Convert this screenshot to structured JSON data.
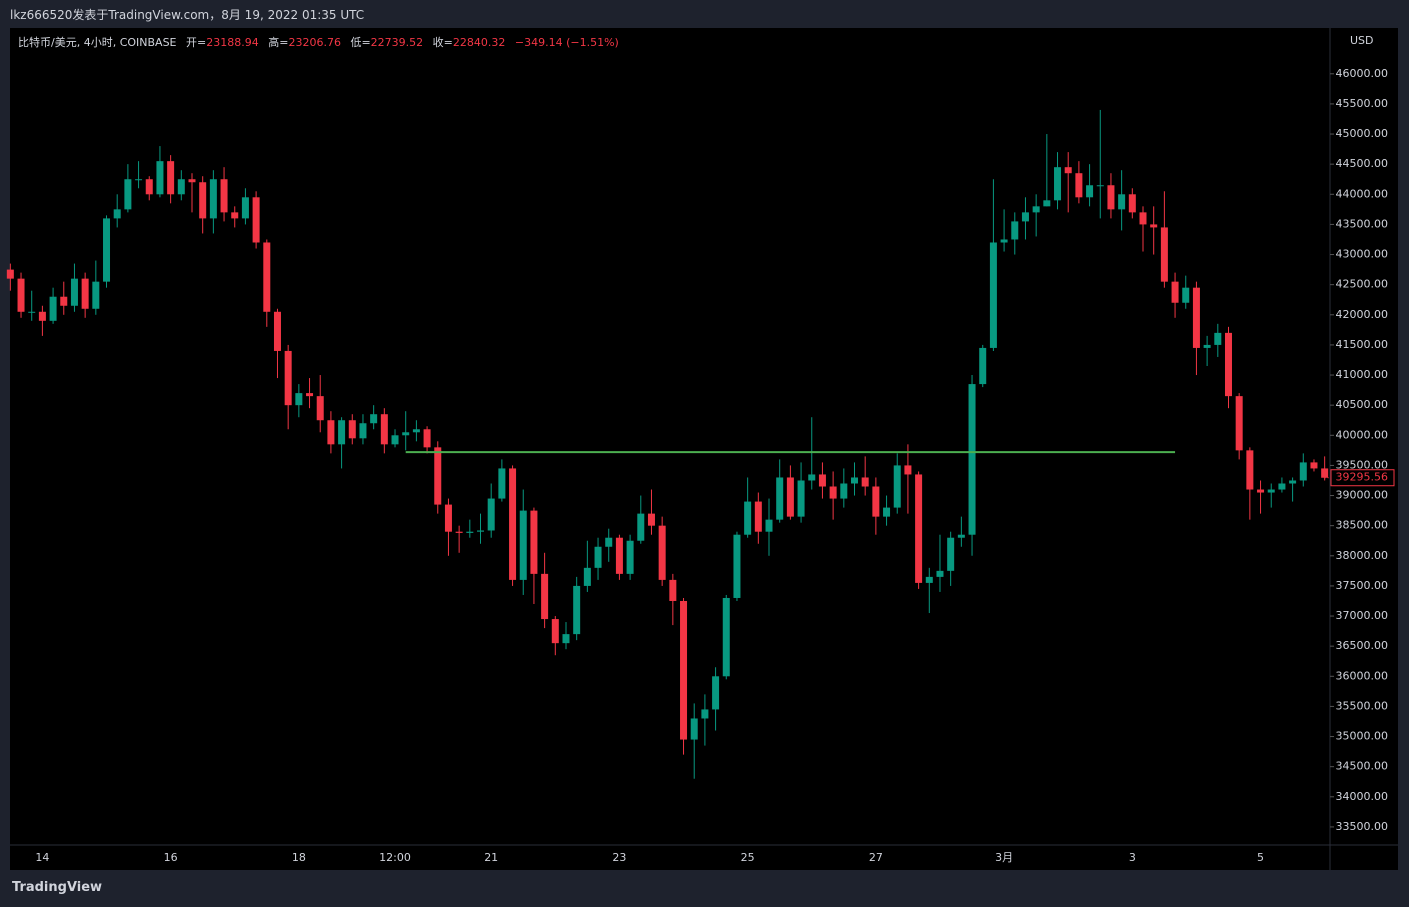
{
  "header": {
    "text": "lkz666520发表于TradingView.com，8月 19, 2022 01:35 UTC"
  },
  "chart_data": {
    "type": "candlestick",
    "legend": {
      "symbol": "比特币/美元, 4小时, COINBASE",
      "open_label": "开=",
      "open": "23188.94",
      "high_label": "高=",
      "high": "23206.76",
      "low_label": "低=",
      "low": "22739.52",
      "close_label": "收=",
      "close": "22840.32",
      "change": "−349.14 (−1.51%)"
    },
    "currency": "USD",
    "categories": [
      null,
      null,
      null,
      "14",
      null,
      null,
      null,
      null,
      null,
      null,
      null,
      null,
      null,
      null,
      null,
      "16",
      null,
      null,
      null,
      null,
      null,
      null,
      null,
      null,
      null,
      null,
      null,
      "18",
      null,
      null,
      null,
      null,
      null,
      null,
      null,
      null,
      "12:00",
      null,
      null,
      null,
      null,
      null,
      null,
      null,
      null,
      "21",
      null,
      null,
      null,
      null,
      null,
      null,
      null,
      null,
      null,
      null,
      null,
      "23",
      null,
      null,
      null,
      null,
      null,
      null,
      null,
      null,
      null,
      null,
      null,
      "25",
      null,
      null,
      null,
      null,
      null,
      null,
      null,
      null,
      null,
      null,
      null,
      "27",
      null,
      null,
      null,
      null,
      null,
      null,
      null,
      null,
      null,
      null,
      null,
      "3月",
      null,
      null,
      null,
      null,
      null,
      null,
      null,
      null,
      null,
      null,
      null,
      "3",
      null,
      null,
      null,
      null,
      null,
      null,
      null,
      null,
      null,
      null,
      null,
      "5",
      null,
      null,
      null,
      null,
      null,
      null
    ],
    "open": [
      42750,
      42600,
      42050,
      42050,
      41900,
      42300,
      42150,
      42600,
      42100,
      42550,
      43600,
      43750,
      44250,
      44250,
      44000,
      44550,
      44000,
      44250,
      44200,
      43600,
      44250,
      43700,
      43600,
      43950,
      43200,
      42050,
      41400,
      40500,
      40700,
      40650,
      40250,
      39850,
      40250,
      39950,
      40200,
      40350,
      39850,
      40000,
      40050,
      40100,
      39800,
      38850,
      38400,
      38380,
      38400,
      38420,
      38950,
      39450,
      37600,
      38750,
      37700,
      36950,
      36550,
      36700,
      37500,
      37800,
      38150,
      38300,
      37700,
      38250,
      38700,
      38500,
      37600,
      37250,
      34950,
      35300,
      35450,
      36000,
      37300,
      38350,
      38900,
      38400,
      38600,
      39300,
      38650,
      39250,
      39350,
      39150,
      38950,
      39200,
      39300,
      39150,
      38650,
      38800,
      39500,
      39350,
      37550,
      37650,
      37750,
      38300,
      38350,
      40850,
      41450,
      43200,
      43250,
      43550,
      43700,
      43800,
      43900,
      44450,
      44350,
      43950,
      44150,
      44150,
      43750,
      44000,
      43700,
      43500,
      43450,
      42550,
      42200,
      42450,
      41450,
      41500,
      41700,
      40650,
      39750,
      39100,
      39050,
      39100,
      39200,
      39250,
      39550,
      39450
    ],
    "high": [
      42850,
      42700,
      42400,
      42150,
      42450,
      42550,
      42850,
      42700,
      42900,
      43650,
      44000,
      44500,
      44550,
      44300,
      44800,
      44650,
      44400,
      44350,
      44300,
      44400,
      44450,
      43800,
      44100,
      44050,
      43250,
      42100,
      41500,
      40850,
      40950,
      41000,
      40400,
      40300,
      40350,
      40350,
      40500,
      40450,
      40100,
      40400,
      40250,
      40150,
      39900,
      38950,
      38500,
      38600,
      38700,
      39200,
      39600,
      39500,
      39100,
      38800,
      38050,
      37000,
      36900,
      37650,
      38250,
      38300,
      38450,
      38350,
      38350,
      39000,
      39100,
      38650,
      37700,
      37300,
      35550,
      35700,
      36150,
      37350,
      38400,
      39300,
      39050,
      38950,
      39600,
      39500,
      39550,
      40300,
      39550,
      39400,
      39450,
      39550,
      39650,
      39300,
      39000,
      39700,
      39850,
      39400,
      37800,
      38350,
      38400,
      38650,
      41000,
      41500,
      44250,
      43750,
      43700,
      43950,
      44000,
      45000,
      44700,
      44700,
      44550,
      44500,
      45400,
      44350,
      44400,
      44100,
      43800,
      43800,
      44050,
      42700,
      42650,
      42550,
      41650,
      41850,
      41800,
      40700,
      39800,
      39250,
      39200,
      39300,
      39300,
      39700,
      39600,
      39650
    ],
    "low": [
      42400,
      41950,
      41900,
      41650,
      41850,
      42000,
      42050,
      41950,
      42000,
      42450,
      43450,
      43700,
      44100,
      43900,
      43950,
      43850,
      43900,
      43700,
      43350,
      43350,
      43550,
      43450,
      43500,
      43100,
      41800,
      40950,
      40100,
      40300,
      40450,
      40050,
      39700,
      39450,
      39850,
      39850,
      40100,
      39700,
      39800,
      39750,
      39900,
      39700,
      38700,
      38000,
      38050,
      38300,
      38200,
      38300,
      38900,
      37500,
      37350,
      37200,
      36800,
      36350,
      36450,
      36600,
      37400,
      37600,
      37900,
      37600,
      37600,
      38200,
      38350,
      37500,
      36850,
      34700,
      34300,
      34850,
      35100,
      35950,
      37250,
      38300,
      38200,
      38000,
      38550,
      38600,
      38550,
      39100,
      38950,
      38600,
      38800,
      39000,
      39000,
      38350,
      38500,
      38700,
      38700,
      37450,
      37050,
      37400,
      37500,
      38150,
      38000,
      40800,
      41400,
      43050,
      43000,
      43250,
      43300,
      43800,
      43750,
      43700,
      43850,
      43800,
      43600,
      43600,
      43400,
      43600,
      43050,
      43000,
      42450,
      41950,
      42100,
      41000,
      41150,
      41300,
      40450,
      39600,
      38600,
      38700,
      38800,
      39050,
      38900,
      39150,
      39400,
      39250
    ],
    "close": [
      42600,
      42050,
      42050,
      41900,
      42300,
      42150,
      42600,
      42100,
      42550,
      43600,
      43750,
      44250,
      44250,
      44000,
      44550,
      44000,
      44250,
      44200,
      43600,
      44250,
      43700,
      43600,
      43950,
      43200,
      42050,
      41400,
      40500,
      40700,
      40650,
      40250,
      39850,
      40250,
      39950,
      40200,
      40350,
      39850,
      40000,
      40050,
      40100,
      39800,
      38850,
      38400,
      38380,
      38400,
      38420,
      38950,
      39450,
      37600,
      38750,
      37700,
      36950,
      36550,
      36700,
      37500,
      37800,
      38150,
      38300,
      37700,
      38250,
      38700,
      38500,
      37600,
      37250,
      34950,
      35300,
      35450,
      36000,
      37300,
      38350,
      38900,
      38400,
      38600,
      39300,
      38650,
      39250,
      39350,
      39150,
      38950,
      39200,
      39300,
      39150,
      38650,
      38800,
      39500,
      39350,
      37550,
      37650,
      37750,
      38300,
      38350,
      40850,
      41450,
      43200,
      43250,
      43550,
      43700,
      43800,
      43900,
      44450,
      44350,
      43950,
      44150,
      44150,
      43750,
      44000,
      43700,
      43500,
      43450,
      42550,
      42200,
      42450,
      41450,
      41500,
      41700,
      40650,
      39750,
      39100,
      39050,
      39100,
      39200,
      39250,
      39550,
      39450,
      39295.56
    ],
    "up_color": "#089981",
    "down_color": "#f23645",
    "ylim": [
      33200,
      46760
    ],
    "yticks": [
      {
        "value": 33500,
        "label": "33500.00"
      },
      {
        "value": 34000,
        "label": "34000.00"
      },
      {
        "value": 34500,
        "label": "34500.00"
      },
      {
        "value": 35000,
        "label": "35000.00"
      },
      {
        "value": 35500,
        "label": "35500.00"
      },
      {
        "value": 36000,
        "label": "36000.00"
      },
      {
        "value": 36500,
        "label": "36500.00"
      },
      {
        "value": 37000,
        "label": "37000.00"
      },
      {
        "value": 37500,
        "label": "37500.00"
      },
      {
        "value": 38000,
        "label": "38000.00"
      },
      {
        "value": 38500,
        "label": "38500.00"
      },
      {
        "value": 39000,
        "label": "39000.00"
      },
      {
        "value": 39500,
        "label": "39500.00"
      },
      {
        "value": 40000,
        "label": "40000.00"
      },
      {
        "value": 40500,
        "label": "40500.00"
      },
      {
        "value": 41000,
        "label": "41000.00"
      },
      {
        "value": 41500,
        "label": "41500.00"
      },
      {
        "value": 42000,
        "label": "42000.00"
      },
      {
        "value": 42500,
        "label": "42500.00"
      },
      {
        "value": 43000,
        "label": "43000.00"
      },
      {
        "value": 43500,
        "label": "43500.00"
      },
      {
        "value": 44000,
        "label": "44000.00"
      },
      {
        "value": 44500,
        "label": "44500.00"
      },
      {
        "value": 45000,
        "label": "45000.00"
      },
      {
        "value": 45500,
        "label": "45500.00"
      },
      {
        "value": 46000,
        "label": "46000.00"
      }
    ],
    "grid": false,
    "level_line": {
      "y": 39720,
      "x_start": 37,
      "x_end": 109,
      "color": "#4caf50"
    }
  },
  "footer": {
    "brand": "TradingView"
  }
}
